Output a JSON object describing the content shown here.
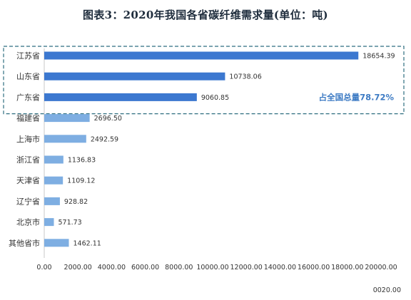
{
  "chart_data": {
    "type": "bar",
    "orientation": "horizontal",
    "title": "图表3：2020年我国各省碳纤维需求量(单位：吨)",
    "categories": [
      "江苏省",
      "山东省",
      "广东省",
      "福建省",
      "上海市",
      "浙江省",
      "天津省",
      "辽宁省",
      "北京市",
      "其他省市"
    ],
    "values": [
      18654.39,
      10738.06,
      9060.85,
      2696.5,
      2492.59,
      1136.83,
      1109.12,
      928.82,
      571.73,
      1462.11
    ],
    "value_labels": [
      "18654.39",
      "10738.06",
      "9060.85",
      "2696.50",
      "2492.59",
      "1136.83",
      "1109.12",
      "928.82",
      "571.73",
      "1462.11"
    ],
    "xlim": [
      0,
      20000
    ],
    "x_ticks": [
      "0.00",
      "2000.00",
      "4000.00",
      "6000.00",
      "8000.00",
      "10000.00",
      "12000.00",
      "14000.00",
      "16000.00",
      "18000.00",
      "20000.00"
    ],
    "highlight": {
      "count": 3,
      "annotation": "占全国总量78.72%"
    },
    "grid": false,
    "colors": {
      "highlight_bar": "#3c78d0",
      "other_bar": "#7eaee2",
      "box": "#2e6e80",
      "annotation": "#3d7bc4"
    }
  },
  "corner_label": "0020.00"
}
